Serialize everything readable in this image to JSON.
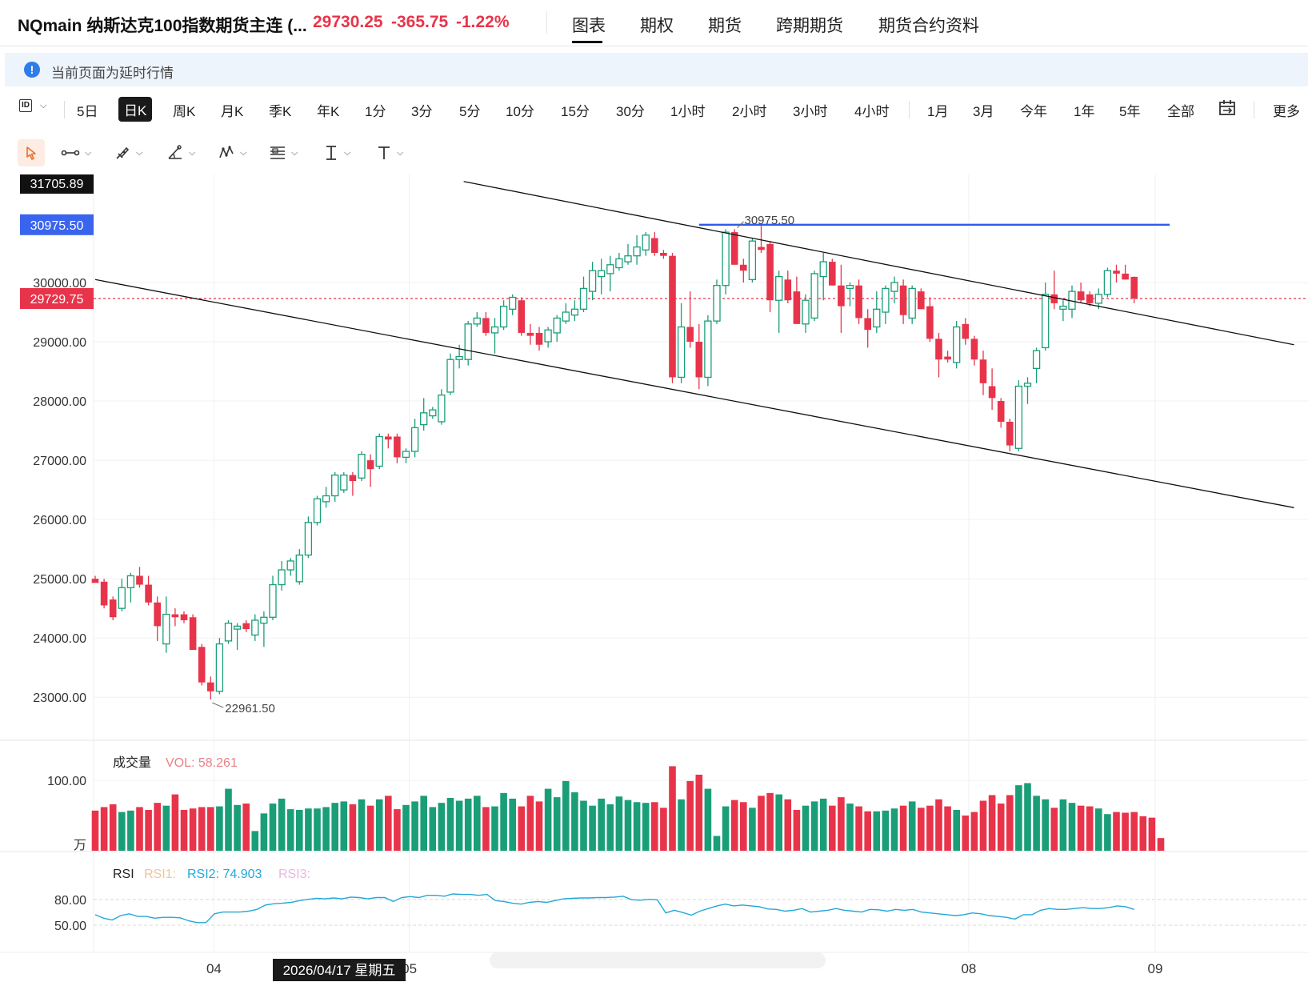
{
  "header": {
    "symbol_title": "NQmain 纳斯达克100指数期货主连 (...",
    "last_price": "29730.25",
    "change": "-365.75",
    "change_pct": "-1.22%",
    "tabs": [
      {
        "label": "图表",
        "active": true
      },
      {
        "label": "期权"
      },
      {
        "label": "期货"
      },
      {
        "label": "跨期期货"
      },
      {
        "label": "期货合约资料"
      }
    ]
  },
  "notice": {
    "text": "当前页面为延时行情"
  },
  "period_bar": {
    "periods": [
      "5日",
      "日K",
      "周K",
      "月K",
      "季K",
      "年K",
      "1分",
      "3分",
      "5分",
      "10分",
      "15分",
      "30分",
      "1小时",
      "2小时",
      "3小时",
      "4小时",
      "1月",
      "3月",
      "今年",
      "1年",
      "5年",
      "全部"
    ],
    "active": "日K",
    "chart_type_label": "ID",
    "more_label": "更多"
  },
  "draw_tools": [
    "cursor-icon",
    "line-tool-icon",
    "brush-icon",
    "angle-icon",
    "pattern-icon",
    "fib-icon",
    "text-cursor-icon",
    "text-icon"
  ],
  "colors": {
    "up": "#1a9e78",
    "down": "#e8344a",
    "blue_line": "#2e5bea",
    "rsi_line": "#24a8d8"
  },
  "chart_data": [
    {
      "type": "candlestick",
      "y_ticks": [
        "30000.00",
        "29000.00",
        "28000.00",
        "27000.00",
        "26000.00",
        "25000.00",
        "24000.00",
        "23000.00"
      ],
      "ylim": [
        22200,
        31705.89
      ],
      "x_ticks": [
        "04",
        "05",
        "08",
        "09"
      ],
      "x_tick_index": [
        14,
        36,
        99,
        120
      ],
      "price_tags": {
        "top": "31705.89",
        "level": "30975.50",
        "current": "29729.75"
      },
      "annotations": {
        "high": "30975.50",
        "low": "22961.50"
      },
      "crosshair_date": "2026/04/17 星期五",
      "candles": [
        {
          "o": 25000,
          "h": 25050,
          "l": 24950,
          "c": 24930
        },
        {
          "o": 24950,
          "h": 25000,
          "l": 24500,
          "c": 24550
        },
        {
          "o": 24650,
          "h": 24700,
          "l": 24300,
          "c": 24350
        },
        {
          "o": 24500,
          "h": 25000,
          "l": 24450,
          "c": 24850
        },
        {
          "o": 24850,
          "h": 25100,
          "l": 24600,
          "c": 25050
        },
        {
          "o": 25050,
          "h": 25200,
          "l": 24850,
          "c": 24900
        },
        {
          "o": 24900,
          "h": 25050,
          "l": 24550,
          "c": 24600
        },
        {
          "o": 24600,
          "h": 24700,
          "l": 23950,
          "c": 24200
        },
        {
          "o": 23900,
          "h": 24700,
          "l": 23750,
          "c": 24400
        },
        {
          "o": 24400,
          "h": 24500,
          "l": 24200,
          "c": 24350
        },
        {
          "o": 24400,
          "h": 24450,
          "l": 24250,
          "c": 24300
        },
        {
          "o": 24350,
          "h": 24400,
          "l": 23800,
          "c": 23800
        },
        {
          "o": 23850,
          "h": 23900,
          "l": 23200,
          "c": 23250
        },
        {
          "o": 23250,
          "h": 23350,
          "l": 22961.5,
          "c": 23100
        },
        {
          "o": 23100,
          "h": 24000,
          "l": 23050,
          "c": 23900
        },
        {
          "o": 23950,
          "h": 24300,
          "l": 23900,
          "c": 24250
        },
        {
          "o": 24150,
          "h": 24250,
          "l": 23800,
          "c": 24200
        },
        {
          "o": 24250,
          "h": 24300,
          "l": 24100,
          "c": 24150
        },
        {
          "o": 24050,
          "h": 24400,
          "l": 23950,
          "c": 24300
        },
        {
          "o": 24250,
          "h": 24450,
          "l": 23850,
          "c": 24350
        },
        {
          "o": 24350,
          "h": 25050,
          "l": 24300,
          "c": 24900
        },
        {
          "o": 24900,
          "h": 25300,
          "l": 24800,
          "c": 25150
        },
        {
          "o": 25150,
          "h": 25350,
          "l": 25050,
          "c": 25300
        },
        {
          "o": 24950,
          "h": 25500,
          "l": 24900,
          "c": 25400
        },
        {
          "o": 25400,
          "h": 26050,
          "l": 25350,
          "c": 25950
        },
        {
          "o": 25950,
          "h": 26400,
          "l": 25900,
          "c": 26350
        },
        {
          "o": 26300,
          "h": 26550,
          "l": 26200,
          "c": 26400
        },
        {
          "o": 26400,
          "h": 26800,
          "l": 26300,
          "c": 26750
        },
        {
          "o": 26500,
          "h": 26800,
          "l": 26450,
          "c": 26750
        },
        {
          "o": 26750,
          "h": 26800,
          "l": 26400,
          "c": 26650
        },
        {
          "o": 26700,
          "h": 27150,
          "l": 26650,
          "c": 27100
        },
        {
          "o": 27000,
          "h": 27100,
          "l": 26550,
          "c": 26850
        },
        {
          "o": 26900,
          "h": 27450,
          "l": 26850,
          "c": 27400
        },
        {
          "o": 27400,
          "h": 27450,
          "l": 27200,
          "c": 27350
        },
        {
          "o": 27400,
          "h": 27450,
          "l": 26950,
          "c": 27050
        },
        {
          "o": 27050,
          "h": 27200,
          "l": 26950,
          "c": 27150
        },
        {
          "o": 27150,
          "h": 27700,
          "l": 27050,
          "c": 27550
        },
        {
          "o": 27600,
          "h": 28050,
          "l": 27500,
          "c": 27800
        },
        {
          "o": 27750,
          "h": 27900,
          "l": 27700,
          "c": 27850
        },
        {
          "o": 27650,
          "h": 28200,
          "l": 27600,
          "c": 28100
        },
        {
          "o": 28150,
          "h": 28800,
          "l": 28100,
          "c": 28700
        },
        {
          "o": 28700,
          "h": 28950,
          "l": 28550,
          "c": 28750
        },
        {
          "o": 28700,
          "h": 29350,
          "l": 28600,
          "c": 29300
        },
        {
          "o": 29300,
          "h": 29500,
          "l": 29250,
          "c": 29400
        },
        {
          "o": 29400,
          "h": 29500,
          "l": 29100,
          "c": 29150
        },
        {
          "o": 29150,
          "h": 29400,
          "l": 28800,
          "c": 29250
        },
        {
          "o": 29250,
          "h": 29700,
          "l": 29200,
          "c": 29600
        },
        {
          "o": 29550,
          "h": 29800,
          "l": 29450,
          "c": 29750
        },
        {
          "o": 29700,
          "h": 29750,
          "l": 29100,
          "c": 29150
        },
        {
          "o": 29150,
          "h": 29300,
          "l": 28950,
          "c": 29100
        },
        {
          "o": 29150,
          "h": 29250,
          "l": 28850,
          "c": 28950
        },
        {
          "o": 29000,
          "h": 29250,
          "l": 28900,
          "c": 29200
        },
        {
          "o": 29150,
          "h": 29450,
          "l": 29000,
          "c": 29400
        },
        {
          "o": 29350,
          "h": 29650,
          "l": 29300,
          "c": 29500
        },
        {
          "o": 29450,
          "h": 29700,
          "l": 29350,
          "c": 29550
        },
        {
          "o": 29550,
          "h": 30100,
          "l": 29500,
          "c": 29900
        },
        {
          "o": 29850,
          "h": 30350,
          "l": 29700,
          "c": 30200
        },
        {
          "o": 30100,
          "h": 30400,
          "l": 29800,
          "c": 30200
        },
        {
          "o": 30150,
          "h": 30450,
          "l": 29850,
          "c": 30300
        },
        {
          "o": 30250,
          "h": 30500,
          "l": 30200,
          "c": 30400
        },
        {
          "o": 30350,
          "h": 30650,
          "l": 30300,
          "c": 30450
        },
        {
          "o": 30450,
          "h": 30800,
          "l": 30300,
          "c": 30600
        },
        {
          "o": 30550,
          "h": 30850,
          "l": 30450,
          "c": 30800
        },
        {
          "o": 30750,
          "h": 30850,
          "l": 30450,
          "c": 30500
        },
        {
          "o": 30500,
          "h": 30550,
          "l": 30400,
          "c": 30450
        },
        {
          "o": 30450,
          "h": 30500,
          "l": 28300,
          "c": 28400
        },
        {
          "o": 28400,
          "h": 29650,
          "l": 28300,
          "c": 29250
        },
        {
          "o": 29250,
          "h": 29850,
          "l": 28900,
          "c": 29000
        },
        {
          "o": 29000,
          "h": 29300,
          "l": 28200,
          "c": 28400
        },
        {
          "o": 28400,
          "h": 29450,
          "l": 28250,
          "c": 29350
        },
        {
          "o": 29350,
          "h": 30050,
          "l": 29300,
          "c": 29950
        },
        {
          "o": 29950,
          "h": 30900,
          "l": 29800,
          "c": 30850
        },
        {
          "o": 30850,
          "h": 30900,
          "l": 30300,
          "c": 30300
        },
        {
          "o": 30300,
          "h": 30400,
          "l": 30000,
          "c": 30200
        },
        {
          "o": 30050,
          "h": 30750,
          "l": 30000,
          "c": 30700
        },
        {
          "o": 30600,
          "h": 30975.5,
          "l": 30500,
          "c": 30550
        },
        {
          "o": 30650,
          "h": 30700,
          "l": 29500,
          "c": 29700
        },
        {
          "o": 29700,
          "h": 30200,
          "l": 29150,
          "c": 30100
        },
        {
          "o": 30050,
          "h": 30200,
          "l": 29650,
          "c": 29700
        },
        {
          "o": 29850,
          "h": 30100,
          "l": 29300,
          "c": 29300
        },
        {
          "o": 29300,
          "h": 29800,
          "l": 29150,
          "c": 29700
        },
        {
          "o": 29400,
          "h": 30200,
          "l": 29350,
          "c": 30150
        },
        {
          "o": 30100,
          "h": 30500,
          "l": 29700,
          "c": 30350
        },
        {
          "o": 30350,
          "h": 30400,
          "l": 29950,
          "c": 29950
        },
        {
          "o": 29950,
          "h": 30300,
          "l": 29150,
          "c": 29600
        },
        {
          "o": 29900,
          "h": 30000,
          "l": 29600,
          "c": 29950
        },
        {
          "o": 29950,
          "h": 30050,
          "l": 29300,
          "c": 29400
        },
        {
          "o": 29400,
          "h": 29550,
          "l": 28900,
          "c": 29200
        },
        {
          "o": 29250,
          "h": 29850,
          "l": 29150,
          "c": 29550
        },
        {
          "o": 29500,
          "h": 29950,
          "l": 29300,
          "c": 29900
        },
        {
          "o": 29850,
          "h": 30100,
          "l": 29650,
          "c": 30000
        },
        {
          "o": 29950,
          "h": 30050,
          "l": 29300,
          "c": 29450
        },
        {
          "o": 29400,
          "h": 29950,
          "l": 29300,
          "c": 29900
        },
        {
          "o": 29850,
          "h": 29900,
          "l": 29550,
          "c": 29550
        },
        {
          "o": 29600,
          "h": 29750,
          "l": 29000,
          "c": 29050
        },
        {
          "o": 29050,
          "h": 29150,
          "l": 28400,
          "c": 28700
        },
        {
          "o": 28750,
          "h": 28850,
          "l": 28650,
          "c": 28700
        },
        {
          "o": 28650,
          "h": 29350,
          "l": 28550,
          "c": 29250
        },
        {
          "o": 29300,
          "h": 29400,
          "l": 28950,
          "c": 29050
        },
        {
          "o": 29050,
          "h": 29100,
          "l": 28600,
          "c": 28700
        },
        {
          "o": 28700,
          "h": 28850,
          "l": 28100,
          "c": 28300
        },
        {
          "o": 28250,
          "h": 28550,
          "l": 27850,
          "c": 28050
        },
        {
          "o": 28000,
          "h": 28050,
          "l": 27550,
          "c": 27650
        },
        {
          "o": 27650,
          "h": 27700,
          "l": 27150,
          "c": 27250
        },
        {
          "o": 27200,
          "h": 28350,
          "l": 27150,
          "c": 28250
        },
        {
          "o": 28250,
          "h": 28400,
          "l": 27950,
          "c": 28300
        },
        {
          "o": 28550,
          "h": 28900,
          "l": 28300,
          "c": 28850
        },
        {
          "o": 28900,
          "h": 30000,
          "l": 28850,
          "c": 29800
        },
        {
          "o": 29800,
          "h": 30200,
          "l": 29550,
          "c": 29650
        },
        {
          "o": 29550,
          "h": 29700,
          "l": 29350,
          "c": 29600
        },
        {
          "o": 29550,
          "h": 29950,
          "l": 29400,
          "c": 29850
        },
        {
          "o": 29850,
          "h": 30000,
          "l": 29650,
          "c": 29700
        },
        {
          "o": 29800,
          "h": 29850,
          "l": 29600,
          "c": 29650
        },
        {
          "o": 29650,
          "h": 29900,
          "l": 29550,
          "c": 29800
        },
        {
          "o": 29800,
          "h": 30250,
          "l": 29750,
          "c": 30200
        },
        {
          "o": 30200,
          "h": 30300,
          "l": 30000,
          "c": 30150
        },
        {
          "o": 30150,
          "h": 30300,
          "l": 30050,
          "c": 30050
        },
        {
          "o": 30096,
          "h": 30100,
          "l": 29650,
          "c": 29730.25
        }
      ],
      "trendlines": [
        {
          "name": "upper-channel-line",
          "from": {
            "i": 41.5,
            "v": 31705.89
          },
          "to": {
            "i": 135,
            "v": 28950
          }
        },
        {
          "name": "lower-channel-line",
          "from": {
            "i": 0,
            "v": 30050
          },
          "to": {
            "i": 135,
            "v": 26200
          }
        },
        {
          "name": "resistance-line",
          "from": {
            "i": 68,
            "v": 30975.5
          },
          "to": {
            "i": 121,
            "v": 30975.5
          }
        }
      ]
    },
    {
      "type": "bar",
      "title": "成交量",
      "value_label": "VOL: 58.261",
      "y_ticks": [
        "100.00"
      ],
      "unit": "万",
      "ylim": [
        0,
        125
      ],
      "values": [
        57,
        62,
        66,
        55,
        57,
        62,
        58,
        68,
        64,
        80,
        58,
        60,
        62,
        62,
        63,
        88,
        65,
        67,
        28,
        53,
        67,
        74,
        59,
        58,
        60,
        60,
        62,
        68,
        70,
        66,
        73,
        64,
        73,
        78,
        59,
        65,
        70,
        78,
        62,
        68,
        75,
        71,
        74,
        78,
        62,
        63,
        82,
        74,
        63,
        78,
        70,
        88,
        76,
        99,
        83,
        71,
        64,
        74,
        66,
        77,
        72,
        69,
        68,
        69,
        61,
        120,
        73,
        99,
        108,
        88,
        21,
        63,
        72,
        69,
        61,
        78,
        82,
        80,
        73,
        58,
        64,
        70,
        74,
        64,
        76,
        67,
        63,
        56,
        56,
        57,
        60,
        64,
        70,
        61,
        64,
        73,
        63,
        58,
        50,
        55,
        71,
        79,
        67,
        79,
        93,
        96,
        78,
        73,
        61,
        73,
        68,
        64,
        63,
        60,
        52,
        55,
        54,
        55,
        49,
        47,
        18
      ]
    },
    {
      "type": "line",
      "title": "RSI",
      "legend": [
        "RSI1:",
        "RSI2: 74.903",
        "RSI3:"
      ],
      "y_ticks": [
        "80.00",
        "50.00"
      ],
      "ylim": [
        10,
        110
      ],
      "values": [
        52,
        44,
        40,
        50,
        54,
        48,
        48,
        44,
        46,
        46,
        45,
        38,
        34,
        34,
        54,
        58,
        58,
        58,
        60,
        64,
        74,
        77,
        78,
        80,
        84,
        87,
        89,
        88,
        90,
        88,
        92,
        91,
        88,
        91,
        91,
        82,
        91,
        93,
        91,
        96,
        96,
        94,
        99,
        98,
        98,
        96,
        98,
        84,
        82,
        78,
        76,
        80,
        82,
        80,
        84,
        88,
        89,
        90,
        90,
        91,
        91,
        92,
        94,
        86,
        85,
        87,
        86,
        56,
        62,
        57,
        51,
        60,
        66,
        72,
        76,
        72,
        74,
        72,
        70,
        65,
        64,
        60,
        62,
        66,
        58,
        60,
        62,
        66,
        62,
        60,
        58,
        64,
        63,
        60,
        64,
        62,
        64,
        58,
        56,
        54,
        52,
        50,
        52,
        56,
        54,
        50,
        48,
        46,
        42,
        52,
        52,
        62,
        66,
        64,
        64,
        66,
        68,
        66,
        66,
        68,
        72,
        70,
        64
      ]
    }
  ]
}
